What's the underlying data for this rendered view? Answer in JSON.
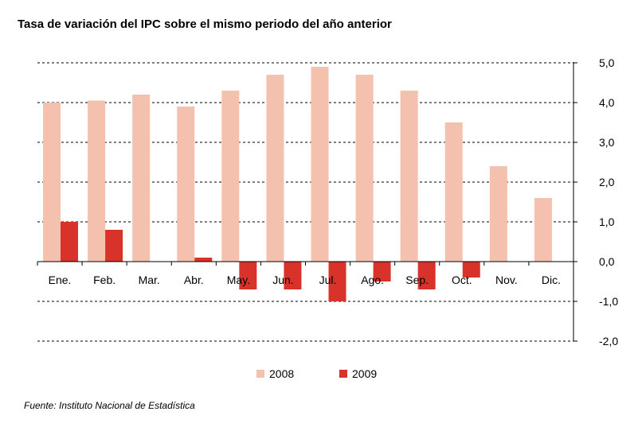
{
  "title": "Tasa de variación del IPC sobre el mismo periodo del año anterior",
  "source": "Fuente: Instituto Nacional de Estadística",
  "chart_data": {
    "type": "bar",
    "categories": [
      "Ene.",
      "Feb.",
      "Mar.",
      "Abr.",
      "May.",
      "Jun.",
      "Jul.",
      "Ago.",
      "Sep.",
      "Oct.",
      "Nov.",
      "Dic."
    ],
    "series": [
      {
        "name": "2008",
        "color": "#f3c1ae",
        "values": [
          4.0,
          4.05,
          4.2,
          3.9,
          4.3,
          4.7,
          4.9,
          4.7,
          4.3,
          3.5,
          2.4,
          1.6
        ]
      },
      {
        "name": "2009",
        "color": "#d9322a",
        "values": [
          1.0,
          0.8,
          null,
          0.1,
          -0.7,
          -0.7,
          -1.0,
          -0.5,
          -0.7,
          -0.4,
          null,
          null
        ]
      }
    ],
    "y_ticks": [
      "5,0",
      "4,0",
      "3,0",
      "2,0",
      "1,0",
      "0,0",
      "-1,0",
      "-2,0"
    ],
    "ylim": [
      -2,
      5
    ],
    "y_axis_position": "right",
    "grid": "dashed horizontal",
    "legend_position": "bottom"
  }
}
